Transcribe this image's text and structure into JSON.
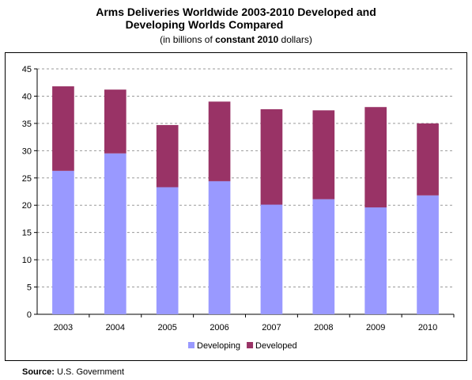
{
  "title_line1": "Arms Deliveries Worldwide 2003-2010 Developed and",
  "title_line2": "Developing Worlds Compared",
  "subtitle_prefix": "(in billions of ",
  "subtitle_bold": "constant 2010",
  "subtitle_suffix": " dollars)",
  "source_label": "Source:",
  "source_text": " U.S. Government",
  "chart_data": {
    "type": "bar",
    "stacked": true,
    "title": "Arms Deliveries Worldwide 2003-2010 Developed and Developing Worlds Compared",
    "subtitle": "(in billions of constant 2010 dollars)",
    "categories": [
      "2003",
      "2004",
      "2005",
      "2006",
      "2007",
      "2008",
      "2009",
      "2010"
    ],
    "series": [
      {
        "name": "Developing",
        "color": "#9999ff",
        "values": [
          26.3,
          29.5,
          23.3,
          24.4,
          20.1,
          21.1,
          19.6,
          21.8
        ]
      },
      {
        "name": "Developed",
        "color": "#993366",
        "values": [
          15.5,
          11.7,
          11.4,
          14.6,
          17.5,
          16.3,
          18.4,
          13.2
        ]
      }
    ],
    "ylim": [
      0,
      45
    ],
    "yticks": [
      0,
      5,
      10,
      15,
      20,
      25,
      30,
      35,
      40,
      45
    ],
    "grid": true,
    "legend_position": "bottom"
  }
}
